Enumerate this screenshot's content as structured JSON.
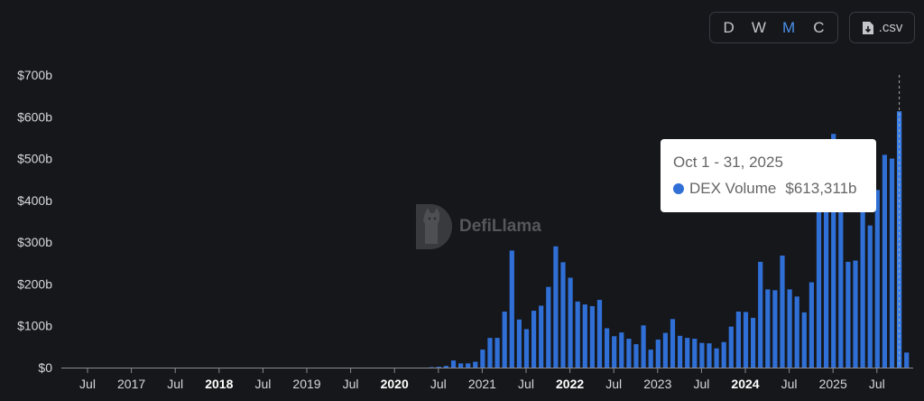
{
  "controls": {
    "granularity": [
      {
        "label": "D",
        "active": false
      },
      {
        "label": "W",
        "active": false
      },
      {
        "label": "M",
        "active": true
      },
      {
        "label": "C",
        "active": false
      }
    ],
    "csv_label": ".csv",
    "csv_icon": "file-download-icon"
  },
  "watermark": {
    "text": "DefiLlama"
  },
  "tooltip": {
    "date": "Oct 1 - 31, 2025",
    "series": "DEX Volume",
    "value": "$613,311b",
    "highlight_month": "2025-10"
  },
  "colors": {
    "bar": "#2f6fd6",
    "accent": "#4a8fe7",
    "background": "#16171b"
  },
  "chart_data": {
    "type": "bar",
    "title": "",
    "xlabel": "",
    "ylabel": "",
    "ylim": [
      0,
      700
    ],
    "y_unit": "billion USD",
    "y_ticks": [
      "$0",
      "$100b",
      "$200b",
      "$300b",
      "$400b",
      "$500b",
      "$600b",
      "$700b"
    ],
    "y_tick_values": [
      0,
      100,
      200,
      300,
      400,
      500,
      600,
      700
    ],
    "x_ticks": [
      {
        "label": "Jul",
        "month": "2016-07",
        "bold": false
      },
      {
        "label": "2017",
        "month": "2017-01",
        "bold": false
      },
      {
        "label": "Jul",
        "month": "2017-07",
        "bold": false
      },
      {
        "label": "2018",
        "month": "2018-01",
        "bold": true
      },
      {
        "label": "Jul",
        "month": "2018-07",
        "bold": false
      },
      {
        "label": "2019",
        "month": "2019-01",
        "bold": false
      },
      {
        "label": "Jul",
        "month": "2019-07",
        "bold": false
      },
      {
        "label": "2020",
        "month": "2020-01",
        "bold": true
      },
      {
        "label": "Jul",
        "month": "2020-07",
        "bold": false
      },
      {
        "label": "2021",
        "month": "2021-01",
        "bold": false
      },
      {
        "label": "Jul",
        "month": "2021-07",
        "bold": false
      },
      {
        "label": "2022",
        "month": "2022-01",
        "bold": true
      },
      {
        "label": "Jul",
        "month": "2022-07",
        "bold": false
      },
      {
        "label": "2023",
        "month": "2023-01",
        "bold": false
      },
      {
        "label": "Jul",
        "month": "2023-07",
        "bold": false
      },
      {
        "label": "2024",
        "month": "2024-01",
        "bold": true
      },
      {
        "label": "Jul",
        "month": "2024-07",
        "bold": false
      },
      {
        "label": "2025",
        "month": "2025-01",
        "bold": false
      },
      {
        "label": "Jul",
        "month": "2025-07",
        "bold": false
      }
    ],
    "grid": false,
    "legend": "none",
    "series": [
      {
        "name": "DEX Volume",
        "x": [
          "2020-06",
          "2020-07",
          "2020-08",
          "2020-09",
          "2020-10",
          "2020-11",
          "2020-12",
          "2021-01",
          "2021-02",
          "2021-03",
          "2021-04",
          "2021-05",
          "2021-06",
          "2021-07",
          "2021-08",
          "2021-09",
          "2021-10",
          "2021-11",
          "2021-12",
          "2022-01",
          "2022-02",
          "2022-03",
          "2022-04",
          "2022-05",
          "2022-06",
          "2022-07",
          "2022-08",
          "2022-09",
          "2022-10",
          "2022-11",
          "2022-12",
          "2023-01",
          "2023-02",
          "2023-03",
          "2023-04",
          "2023-05",
          "2023-06",
          "2023-07",
          "2023-08",
          "2023-09",
          "2023-10",
          "2023-11",
          "2023-12",
          "2024-01",
          "2024-02",
          "2024-03",
          "2024-04",
          "2024-05",
          "2024-06",
          "2024-07",
          "2024-08",
          "2024-09",
          "2024-10",
          "2024-11",
          "2024-12",
          "2025-01",
          "2025-02",
          "2025-03",
          "2025-04",
          "2025-05",
          "2025-06",
          "2025-07",
          "2025-08",
          "2025-09",
          "2025-10",
          "2025-11"
        ],
        "values": [
          1,
          2,
          4,
          17,
          10,
          10,
          14,
          43,
          71,
          71,
          134,
          280,
          115,
          92,
          136,
          148,
          193,
          290,
          252,
          215,
          158,
          151,
          147,
          162,
          94,
          75,
          84,
          69,
          56,
          101,
          43,
          67,
          83,
          116,
          76,
          71,
          69,
          59,
          58,
          46,
          61,
          98,
          134,
          133,
          119,
          253,
          187,
          185,
          268,
          187,
          170,
          132,
          204,
          380,
          420,
          559,
          400,
          253,
          256,
          390,
          340,
          425,
          509,
          500,
          613,
          36
        ]
      }
    ]
  }
}
